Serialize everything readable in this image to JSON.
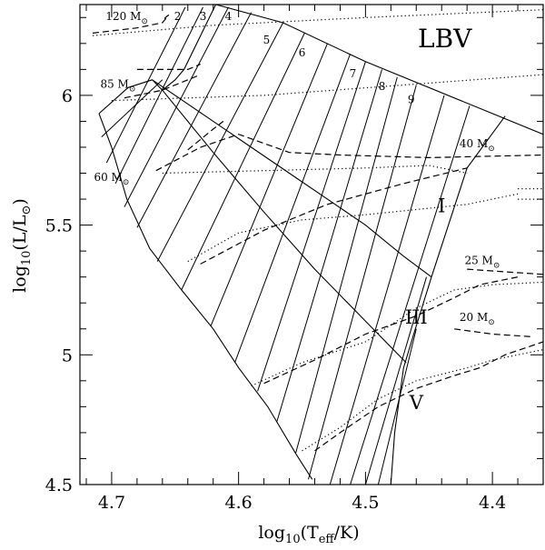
{
  "chart_data": {
    "type": "line",
    "title": "",
    "xlabel": "log10(Teff/K)",
    "ylabel": "log10(L/L⊙)",
    "xlim": [
      4.725,
      4.36
    ],
    "ylim": [
      4.5,
      6.35
    ],
    "x_reversed": true,
    "grid": false,
    "legend": "none",
    "x_ticks": [
      4.7,
      4.6,
      4.5,
      4.4
    ],
    "x_tick_labels": [
      "4.7",
      "4.6",
      "4.5",
      "4.4"
    ],
    "y_ticks": [
      4.5,
      5,
      5.5,
      6
    ],
    "y_tick_labels": [
      "4.5",
      "5",
      "5.5",
      "6"
    ],
    "region_label": "LBV",
    "class_labels": [
      {
        "text": "I",
        "x": 4.44,
        "y": 5.55
      },
      {
        "text": "III",
        "x": 4.46,
        "y": 5.12
      },
      {
        "text": "V",
        "x": 4.46,
        "y": 4.79
      }
    ],
    "mass_labels": [
      {
        "num": "120",
        "unit": "M⊙",
        "x": 4.688,
        "y": 6.29
      },
      {
        "num": "85",
        "unit": "M⊙",
        "x": 4.695,
        "y": 6.03
      },
      {
        "num": "60",
        "unit": "M⊙",
        "x": 4.7,
        "y": 5.67
      },
      {
        "num": "40",
        "unit": "M⊙",
        "x": 4.412,
        "y": 5.8
      },
      {
        "num": "25",
        "unit": "M⊙",
        "x": 4.408,
        "y": 5.35
      },
      {
        "num": "20",
        "unit": "M⊙",
        "x": 4.412,
        "y": 5.13
      }
    ],
    "isochrone_labels": [
      {
        "text": "2",
        "x": 4.648,
        "y": 6.29
      },
      {
        "text": "3",
        "x": 4.628,
        "y": 6.29
      },
      {
        "text": "4",
        "x": 4.608,
        "y": 6.29
      },
      {
        "text": "5",
        "x": 4.578,
        "y": 6.2
      },
      {
        "text": "6",
        "x": 4.55,
        "y": 6.15
      },
      {
        "text": "7",
        "x": 4.51,
        "y": 6.07
      },
      {
        "text": "8",
        "x": 4.487,
        "y": 6.02
      },
      {
        "text": "9",
        "x": 4.464,
        "y": 5.97
      }
    ],
    "boundaries": {
      "zams_left": [
        [
          4.71,
          5.93
        ],
        [
          4.7,
          5.8
        ],
        [
          4.688,
          5.6
        ],
        [
          4.67,
          5.41
        ],
        [
          4.645,
          5.25
        ],
        [
          4.62,
          5.1
        ],
        [
          4.6,
          4.95
        ],
        [
          4.577,
          4.8
        ],
        [
          4.555,
          4.62
        ],
        [
          4.542,
          4.52
        ]
      ],
      "top_edge": [
        [
          4.71,
          5.93
        ],
        [
          4.687,
          6.03
        ],
        [
          4.668,
          6.06
        ],
        [
          4.66,
          6.02
        ],
        [
          4.65,
          6.06
        ],
        [
          4.643,
          6.1
        ],
        [
          4.618,
          6.35
        ],
        [
          4.565,
          6.28
        ],
        [
          4.5,
          6.13
        ],
        [
          4.4,
          5.93
        ],
        [
          4.36,
          5.85
        ]
      ],
      "class_I_boundary": [
        [
          4.668,
          6.06
        ],
        [
          4.62,
          5.9
        ],
        [
          4.59,
          5.8
        ],
        [
          4.56,
          5.7
        ],
        [
          4.53,
          5.6
        ],
        [
          4.5,
          5.5
        ],
        [
          4.47,
          5.38
        ],
        [
          4.448,
          5.3
        ]
      ],
      "class_III_boundary": [
        [
          4.66,
          6.02
        ],
        [
          4.62,
          5.78
        ],
        [
          4.58,
          5.55
        ],
        [
          4.54,
          5.33
        ],
        [
          4.5,
          5.13
        ],
        [
          4.468,
          4.97
        ]
      ],
      "class_I_right_edge": [
        [
          4.39,
          5.92
        ],
        [
          4.42,
          5.72
        ],
        [
          4.448,
          5.3
        ]
      ],
      "class_III_right_edge": [
        [
          4.448,
          5.3
        ],
        [
          4.462,
          5.08
        ],
        [
          4.47,
          4.95
        ]
      ],
      "class_V_right_edge": [
        [
          4.47,
          4.95
        ],
        [
          4.477,
          4.7
        ],
        [
          4.48,
          4.5
        ]
      ]
    },
    "isochrones": [
      [
        [
          4.708,
          5.84
        ],
        [
          4.66,
          6.06
        ]
      ],
      [
        [
          4.704,
          5.74
        ],
        [
          4.642,
          6.34
        ]
      ],
      [
        [
          4.697,
          5.66
        ],
        [
          4.628,
          6.34
        ]
      ],
      [
        [
          4.69,
          5.57
        ],
        [
          4.608,
          6.34
        ]
      ],
      [
        [
          4.68,
          5.49
        ],
        [
          4.59,
          6.32
        ]
      ],
      [
        [
          4.664,
          5.36
        ],
        [
          4.565,
          6.28
        ]
      ],
      [
        [
          4.645,
          5.25
        ],
        [
          4.548,
          6.24
        ]
      ],
      [
        [
          4.622,
          5.11
        ],
        [
          4.53,
          6.2
        ]
      ],
      [
        [
          4.603,
          4.97
        ],
        [
          4.512,
          6.16
        ]
      ],
      [
        [
          4.585,
          4.86
        ],
        [
          4.5,
          6.13
        ]
      ],
      [
        [
          4.57,
          4.74
        ],
        [
          4.487,
          6.1
        ]
      ],
      [
        [
          4.555,
          4.62
        ],
        [
          4.475,
          6.07
        ]
      ],
      [
        [
          4.545,
          4.52
        ],
        [
          4.46,
          6.04
        ]
      ],
      [
        [
          4.528,
          4.5
        ],
        [
          4.438,
          6.0
        ]
      ],
      [
        [
          4.512,
          4.5
        ],
        [
          4.418,
          5.96
        ]
      ],
      [
        [
          4.5,
          4.5
        ],
        [
          4.452,
          5.3
        ]
      ],
      [
        [
          4.49,
          4.5
        ],
        [
          4.46,
          5.1
        ]
      ]
    ],
    "series": [
      {
        "style": "dashed",
        "points": [
          [
            4.715,
            6.24
          ],
          [
            4.68,
            6.26
          ],
          [
            4.66,
            6.28
          ],
          [
            4.655,
            6.31
          ],
          [
            4.66,
            6.29
          ]
        ]
      },
      {
        "style": "dotted",
        "points": [
          [
            4.715,
            6.23
          ],
          [
            4.62,
            6.27
          ],
          [
            4.5,
            6.3
          ],
          [
            4.36,
            6.33
          ]
        ]
      },
      {
        "style": "dashed",
        "points": [
          [
            4.68,
            6.1
          ],
          [
            4.64,
            6.1
          ],
          [
            4.63,
            6.12
          ]
        ]
      },
      {
        "style": "dashed",
        "points": [
          [
            4.69,
            5.99
          ],
          [
            4.66,
            6.02
          ],
          [
            4.64,
            6.06
          ],
          [
            4.63,
            6.08
          ]
        ]
      },
      {
        "style": "dotted",
        "points": [
          [
            4.7,
            5.98
          ],
          [
            4.58,
            6.0
          ],
          [
            4.47,
            6.04
          ],
          [
            4.36,
            6.08
          ]
        ]
      },
      {
        "style": "dashed",
        "points": [
          [
            4.665,
            5.71
          ],
          [
            4.63,
            5.8
          ],
          [
            4.6,
            5.85
          ],
          [
            4.56,
            5.78
          ],
          [
            4.52,
            5.77
          ],
          [
            4.45,
            5.76
          ],
          [
            4.36,
            5.77
          ]
        ]
      },
      {
        "style": "dashed",
        "points": [
          [
            4.64,
            5.79
          ],
          [
            4.62,
            5.87
          ],
          [
            4.612,
            5.9
          ]
        ]
      },
      {
        "style": "dotted",
        "points": [
          [
            4.66,
            5.7
          ],
          [
            4.58,
            5.71
          ],
          [
            4.5,
            5.72
          ],
          [
            4.45,
            5.73
          ],
          [
            4.42,
            5.7
          ]
        ]
      },
      {
        "style": "dashed",
        "points": [
          [
            4.63,
            5.35
          ],
          [
            4.58,
            5.48
          ],
          [
            4.53,
            5.58
          ],
          [
            4.47,
            5.66
          ],
          [
            4.42,
            5.72
          ]
        ]
      },
      {
        "style": "dotted",
        "points": [
          [
            4.64,
            5.36
          ],
          [
            4.6,
            5.47
          ],
          [
            4.55,
            5.52
          ],
          [
            4.5,
            5.54
          ],
          [
            4.42,
            5.58
          ],
          [
            4.38,
            5.62
          ]
        ]
      },
      {
        "style": "dotted",
        "points": [
          [
            4.38,
            5.64
          ],
          [
            4.36,
            5.64
          ]
        ]
      },
      {
        "style": "dotted",
        "points": [
          [
            4.38,
            5.6
          ],
          [
            4.36,
            5.6
          ]
        ]
      },
      {
        "style": "dashed",
        "points": [
          [
            4.42,
            5.33
          ],
          [
            4.39,
            5.32
          ],
          [
            4.36,
            5.31
          ]
        ]
      },
      {
        "style": "dashed",
        "points": [
          [
            4.58,
            4.89
          ],
          [
            4.54,
            4.98
          ],
          [
            4.5,
            5.08
          ],
          [
            4.46,
            5.15
          ],
          [
            4.43,
            5.22
          ],
          [
            4.41,
            5.27
          ],
          [
            4.38,
            5.3
          ]
        ]
      },
      {
        "style": "dotted",
        "points": [
          [
            4.59,
            4.88
          ],
          [
            4.55,
            4.97
          ],
          [
            4.5,
            5.05
          ],
          [
            4.46,
            5.18
          ],
          [
            4.43,
            5.25
          ],
          [
            4.4,
            5.27
          ],
          [
            4.36,
            5.28
          ]
        ]
      },
      {
        "style": "dashed",
        "points": [
          [
            4.54,
            4.63
          ],
          [
            4.52,
            4.7
          ],
          [
            4.49,
            4.8
          ],
          [
            4.46,
            4.87
          ],
          [
            4.43,
            4.92
          ],
          [
            4.41,
            4.95
          ],
          [
            4.39,
            5.0
          ],
          [
            4.36,
            5.05
          ]
        ]
      },
      {
        "style": "dotted",
        "points": [
          [
            4.55,
            4.63
          ],
          [
            4.52,
            4.72
          ],
          [
            4.49,
            4.83
          ],
          [
            4.46,
            4.9
          ],
          [
            4.42,
            4.95
          ],
          [
            4.4,
            4.98
          ],
          [
            4.36,
            5.02
          ]
        ]
      },
      {
        "style": "dashed",
        "points": [
          [
            4.43,
            5.1
          ],
          [
            4.4,
            5.08
          ],
          [
            4.37,
            5.07
          ]
        ]
      }
    ]
  }
}
